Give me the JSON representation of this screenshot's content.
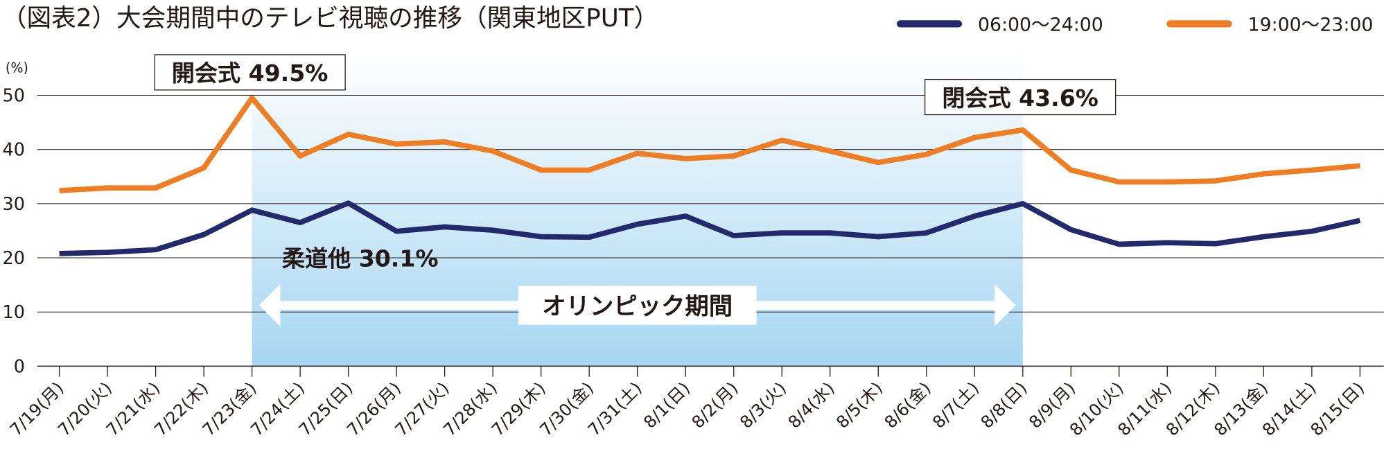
{
  "chart_data": {
    "type": "line",
    "title": "（図表2）大会期間中のテレビ視聴の推移（関東地区PUT）",
    "ylabel": "(%)",
    "ylim": [
      0,
      50
    ],
    "yticks": [
      0,
      10,
      20,
      30,
      40,
      50
    ],
    "grid": true,
    "legend_placement": "top-right",
    "categories": [
      "7/19(月)",
      "7/20(火)",
      "7/21(水)",
      "7/22(木)",
      "7/23(金)",
      "7/24(土)",
      "7/25(日)",
      "7/26(月)",
      "7/27(火)",
      "7/28(水)",
      "7/29(木)",
      "7/30(金)",
      "7/31(土)",
      "8/1(日)",
      "8/2(月)",
      "8/3(火)",
      "8/4(水)",
      "8/5(木)",
      "8/6(金)",
      "8/7(土)",
      "8/8(日)",
      "8/9(月)",
      "8/10(火)",
      "8/11(水)",
      "8/12(木)",
      "8/13(金)",
      "8/14(土)",
      "8/15(日)"
    ],
    "series": [
      {
        "name": "06:00～24:00",
        "color": "#232a6b",
        "values": [
          20.8,
          21.0,
          21.5,
          24.3,
          28.8,
          26.5,
          30.1,
          24.9,
          25.7,
          25.1,
          23.9,
          23.8,
          26.2,
          27.7,
          24.1,
          24.6,
          24.6,
          23.9,
          24.6,
          27.7,
          30.0,
          25.2,
          22.5,
          22.8,
          22.6,
          23.9,
          24.9,
          26.9
        ]
      },
      {
        "name": "19:00～23:00",
        "color": "#ee7d23",
        "values": [
          32.4,
          32.9,
          32.9,
          36.6,
          49.5,
          38.8,
          42.8,
          41.0,
          41.4,
          39.7,
          36.2,
          36.2,
          39.3,
          38.3,
          38.8,
          41.7,
          39.7,
          37.6,
          39.1,
          42.2,
          43.6,
          36.2,
          34.0,
          34.0,
          34.2,
          35.5,
          36.2,
          37.0
        ]
      }
    ],
    "period": {
      "label": "オリンピック期間",
      "start": "7/23(金)",
      "end": "8/8(日)",
      "color": "#a6d6f2"
    },
    "annotations": [
      {
        "text": "開会式 49.5%",
        "category": "7/23(金)",
        "series": "19:00～23:00"
      },
      {
        "text": "柔道他 30.1%",
        "category": "7/25(日)",
        "series": "06:00～24:00"
      },
      {
        "text": "閉会式 43.6%",
        "category": "8/8(日)",
        "series": "19:00～23:00"
      }
    ]
  }
}
